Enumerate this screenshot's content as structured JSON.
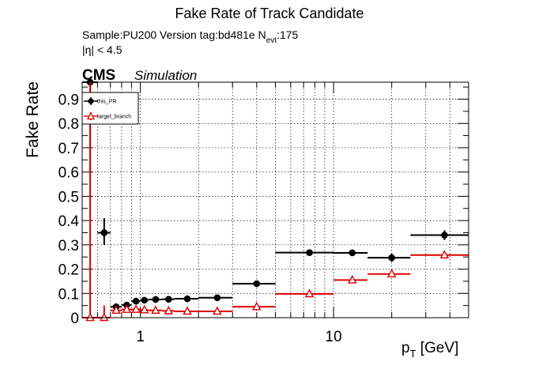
{
  "header": {
    "title": "Fake Rate of Track Candidate",
    "sample_line_1": "Sample:PU200   Version tag:bd481e  N",
    "sample_line_sub": "evt",
    "sample_line_2": ":175",
    "eta_cut": "|η| < 4.5",
    "cms": "CMS",
    "simulation": "Simulation"
  },
  "chart_data": {
    "type": "scatter",
    "title": "Fake Rate of Track Candidate",
    "xlabel": "p",
    "xlabel_sub": "T",
    "xlabel_unit": " [GeV]",
    "ylabel": "Fake Rate",
    "x_scale": "log",
    "xlim": [
      0.5,
      50
    ],
    "ylim": [
      0,
      0.97
    ],
    "x_ticks": [
      {
        "v": 1,
        "label": "1"
      },
      {
        "v": 10,
        "label": "10"
      }
    ],
    "y_ticks": [
      0,
      0.1,
      0.2,
      0.3,
      0.4,
      0.5,
      0.6,
      0.7,
      0.8,
      0.9
    ],
    "grid": true,
    "legend_position": "top-left",
    "series": [
      {
        "name": "this_PR",
        "color": "#000000",
        "marker": "filled-circle",
        "points": [
          {
            "x": 0.55,
            "xlo": 0.5,
            "xhi": 0.6,
            "y": 0.97,
            "ylo": 0.6,
            "yhi": 0.97
          },
          {
            "x": 0.65,
            "xlo": 0.6,
            "xhi": 0.7,
            "y": 0.35,
            "ylo": 0.3,
            "yhi": 0.41
          },
          {
            "x": 0.75,
            "xlo": 0.7,
            "xhi": 0.8,
            "y": 0.045,
            "ylo": 0.035,
            "yhi": 0.055
          },
          {
            "x": 0.85,
            "xlo": 0.8,
            "xhi": 0.9,
            "y": 0.052,
            "ylo": 0.045,
            "yhi": 0.06
          },
          {
            "x": 0.95,
            "xlo": 0.9,
            "xhi": 1.0,
            "y": 0.068,
            "ylo": 0.062,
            "yhi": 0.074
          },
          {
            "x": 1.05,
            "xlo": 1.0,
            "xhi": 1.1,
            "y": 0.072,
            "ylo": 0.067,
            "yhi": 0.077
          },
          {
            "x": 1.2,
            "xlo": 1.1,
            "xhi": 1.3,
            "y": 0.075,
            "ylo": 0.071,
            "yhi": 0.079
          },
          {
            "x": 1.4,
            "xlo": 1.3,
            "xhi": 1.5,
            "y": 0.076,
            "ylo": 0.072,
            "yhi": 0.08
          },
          {
            "x": 1.75,
            "xlo": 1.5,
            "xhi": 2.0,
            "y": 0.078,
            "ylo": 0.074,
            "yhi": 0.082
          },
          {
            "x": 2.5,
            "xlo": 2.0,
            "xhi": 3.0,
            "y": 0.082,
            "ylo": 0.077,
            "yhi": 0.087
          },
          {
            "x": 4.0,
            "xlo": 3.0,
            "xhi": 5.0,
            "y": 0.14,
            "ylo": 0.134,
            "yhi": 0.146
          },
          {
            "x": 7.5,
            "xlo": 5.0,
            "xhi": 10.0,
            "y": 0.268,
            "ylo": 0.262,
            "yhi": 0.274
          },
          {
            "x": 12.5,
            "xlo": 10.0,
            "xhi": 15.0,
            "y": 0.267,
            "ylo": 0.255,
            "yhi": 0.279
          },
          {
            "x": 20.0,
            "xlo": 15.0,
            "xhi": 25.0,
            "y": 0.247,
            "ylo": 0.23,
            "yhi": 0.264
          },
          {
            "x": 37.5,
            "xlo": 25.0,
            "xhi": 50.0,
            "y": 0.34,
            "ylo": 0.32,
            "yhi": 0.36
          }
        ]
      },
      {
        "name": "target_branch",
        "color": "#e00000",
        "marker": "open-triangle",
        "points": [
          {
            "x": 0.55,
            "xlo": 0.5,
            "xhi": 0.6,
            "y": 0.0,
            "ylo": 0.0,
            "yhi": 0.97
          },
          {
            "x": 0.65,
            "xlo": 0.6,
            "xhi": 0.7,
            "y": 0.0,
            "ylo": 0.0,
            "yhi": 0.05
          },
          {
            "x": 0.75,
            "xlo": 0.7,
            "xhi": 0.8,
            "y": 0.03,
            "ylo": 0.024,
            "yhi": 0.036
          },
          {
            "x": 0.85,
            "xlo": 0.8,
            "xhi": 0.9,
            "y": 0.034,
            "ylo": 0.029,
            "yhi": 0.039
          },
          {
            "x": 0.95,
            "xlo": 0.9,
            "xhi": 1.0,
            "y": 0.034,
            "ylo": 0.03,
            "yhi": 0.038
          },
          {
            "x": 1.05,
            "xlo": 1.0,
            "xhi": 1.1,
            "y": 0.032,
            "ylo": 0.028,
            "yhi": 0.036
          },
          {
            "x": 1.2,
            "xlo": 1.1,
            "xhi": 1.3,
            "y": 0.03,
            "ylo": 0.026,
            "yhi": 0.034
          },
          {
            "x": 1.4,
            "xlo": 1.3,
            "xhi": 1.5,
            "y": 0.028,
            "ylo": 0.025,
            "yhi": 0.031
          },
          {
            "x": 1.75,
            "xlo": 1.5,
            "xhi": 2.0,
            "y": 0.026,
            "ylo": 0.023,
            "yhi": 0.029
          },
          {
            "x": 2.5,
            "xlo": 2.0,
            "xhi": 3.0,
            "y": 0.026,
            "ylo": 0.023,
            "yhi": 0.029
          },
          {
            "x": 4.0,
            "xlo": 3.0,
            "xhi": 5.0,
            "y": 0.045,
            "ylo": 0.041,
            "yhi": 0.049
          },
          {
            "x": 7.5,
            "xlo": 5.0,
            "xhi": 10.0,
            "y": 0.098,
            "ylo": 0.093,
            "yhi": 0.103
          },
          {
            "x": 12.5,
            "xlo": 10.0,
            "xhi": 15.0,
            "y": 0.155,
            "ylo": 0.146,
            "yhi": 0.164
          },
          {
            "x": 20.0,
            "xlo": 15.0,
            "xhi": 25.0,
            "y": 0.18,
            "ylo": 0.168,
            "yhi": 0.192
          },
          {
            "x": 37.5,
            "xlo": 25.0,
            "xhi": 50.0,
            "y": 0.258,
            "ylo": 0.243,
            "yhi": 0.273
          }
        ]
      }
    ]
  }
}
